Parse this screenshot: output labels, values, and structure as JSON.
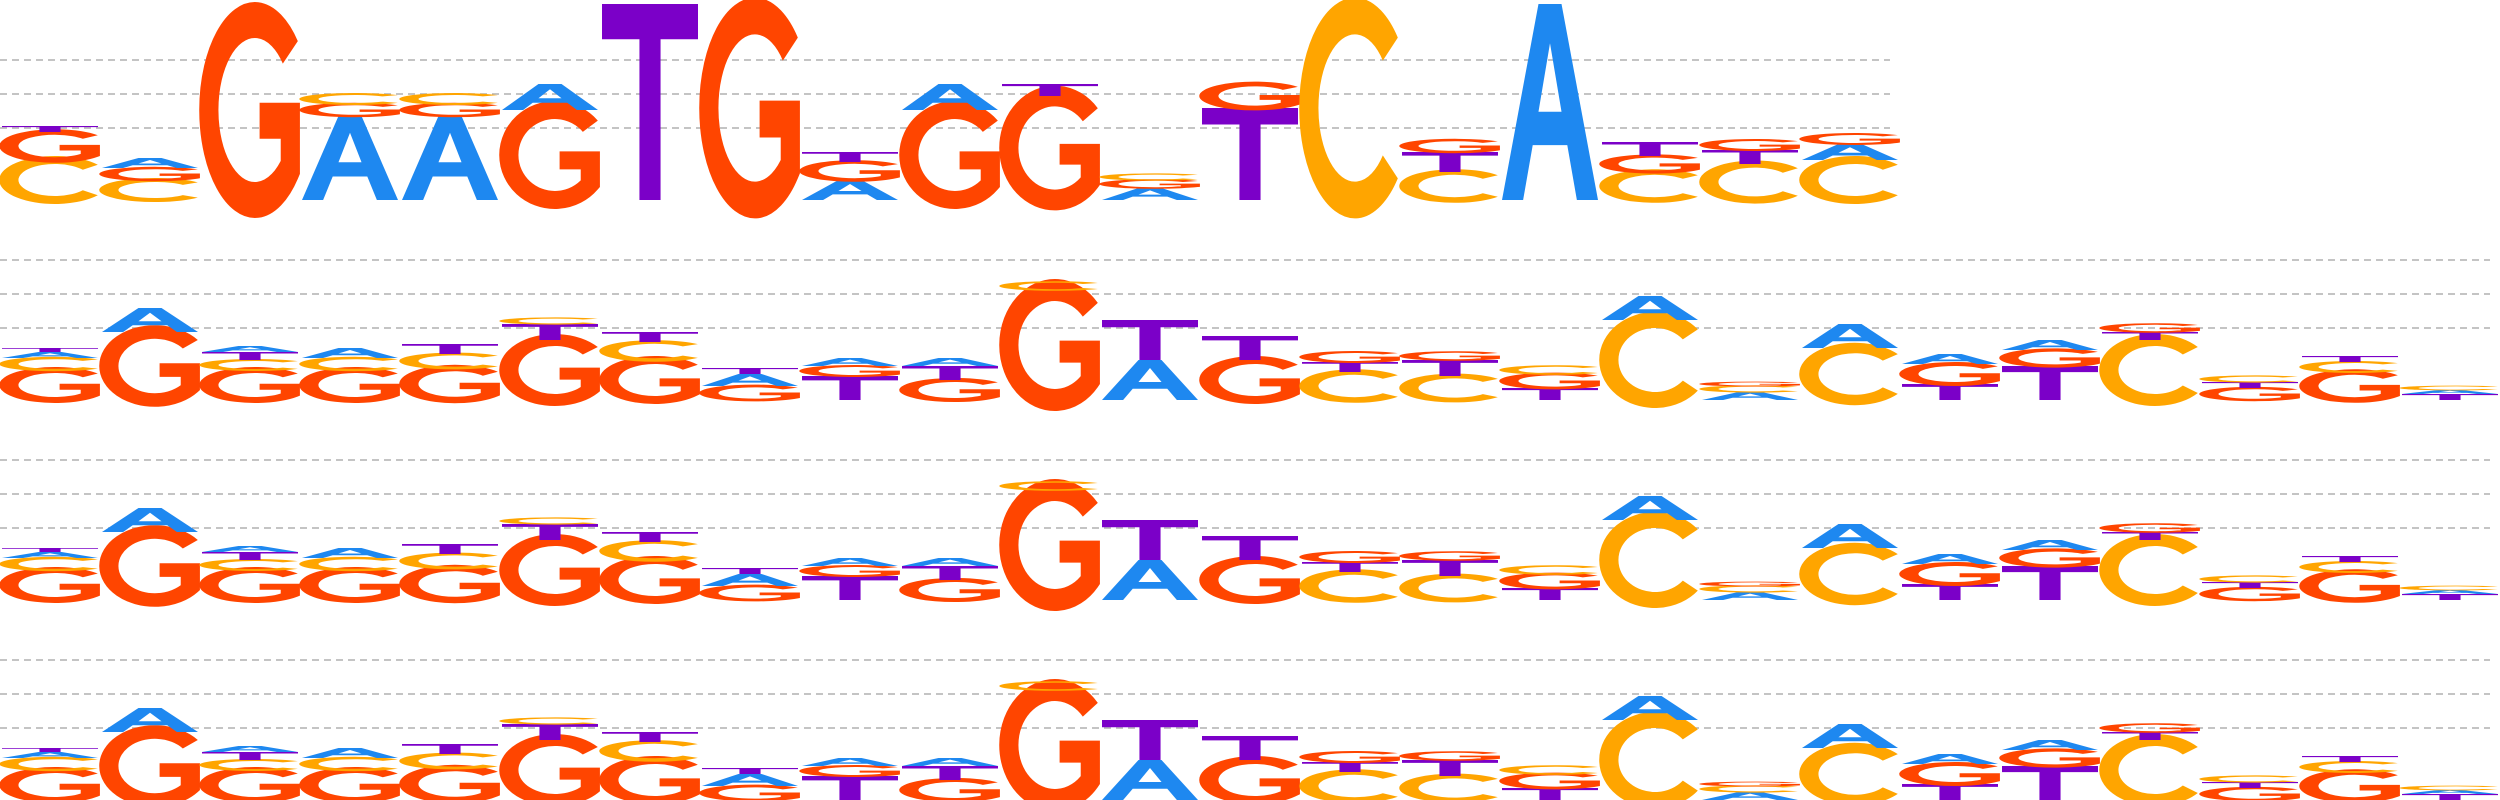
{
  "colors": {
    "A": "#1E88F0",
    "C": "#FFA500",
    "G": "#FF4500",
    "T": "#7B00C8",
    "grid": "#B0B0B0"
  },
  "logos": [
    {
      "name": "motif-logo-1",
      "columns": [
        [
          [
            "C",
            0.2
          ],
          [
            "G",
            0.14
          ],
          [
            "T",
            0.03
          ]
        ],
        [
          [
            "C",
            0.1
          ],
          [
            "G",
            0.06
          ],
          [
            "A",
            0.05
          ]
        ],
        [
          [
            "G",
            0.9
          ]
        ],
        [
          [
            "A",
            0.42
          ],
          [
            "G",
            0.06
          ],
          [
            "C",
            0.05
          ]
        ],
        [
          [
            "A",
            0.42
          ],
          [
            "G",
            0.06
          ],
          [
            "C",
            0.05
          ]
        ],
        [
          [
            "G",
            0.45
          ],
          [
            "A",
            0.13
          ]
        ],
        [
          [
            "T",
            0.98
          ]
        ],
        [
          [
            "G",
            0.92
          ]
        ],
        [
          [
            "A",
            0.1
          ],
          [
            "G",
            0.09
          ],
          [
            "T",
            0.05
          ]
        ],
        [
          [
            "G",
            0.45
          ],
          [
            "A",
            0.13
          ]
        ],
        [
          [
            "G",
            0.52
          ],
          [
            "T",
            0.06
          ]
        ],
        [
          [
            "A",
            0.06
          ],
          [
            "G",
            0.04
          ],
          [
            "C",
            0.03
          ]
        ],
        [
          [
            "T",
            0.46
          ],
          [
            "G",
            0.12
          ]
        ],
        [
          [
            "C",
            0.92
          ]
        ],
        [
          [
            "C",
            0.14
          ],
          [
            "T",
            0.1
          ],
          [
            "G",
            0.06
          ]
        ],
        [
          [
            "A",
            0.98
          ]
        ],
        [
          [
            "C",
            0.14
          ],
          [
            "G",
            0.08
          ],
          [
            "T",
            0.07
          ]
        ],
        [
          [
            "C",
            0.18
          ],
          [
            "T",
            0.07
          ],
          [
            "G",
            0.05
          ]
        ],
        [
          [
            "C",
            0.2
          ],
          [
            "A",
            0.08
          ],
          [
            "G",
            0.05
          ]
        ]
      ]
    },
    {
      "name": "motif-logo-2",
      "columns": [
        [
          [
            "G",
            0.15
          ],
          [
            "C",
            0.06
          ],
          [
            "A",
            0.03
          ],
          [
            "T",
            0.02
          ]
        ],
        [
          [
            "G",
            0.34
          ],
          [
            "A",
            0.12
          ]
        ],
        [
          [
            "G",
            0.15
          ],
          [
            "C",
            0.05
          ],
          [
            "T",
            0.04
          ],
          [
            "A",
            0.03
          ]
        ],
        [
          [
            "G",
            0.15
          ],
          [
            "C",
            0.06
          ],
          [
            "A",
            0.05
          ]
        ],
        [
          [
            "G",
            0.16
          ],
          [
            "C",
            0.07
          ],
          [
            "T",
            0.05
          ]
        ],
        [
          [
            "G",
            0.3
          ],
          [
            "T",
            0.08
          ],
          [
            "C",
            0.03
          ]
        ],
        [
          [
            "G",
            0.2
          ],
          [
            "C",
            0.09
          ],
          [
            "T",
            0.05
          ]
        ],
        [
          [
            "G",
            0.07
          ],
          [
            "A",
            0.06
          ],
          [
            "T",
            0.03
          ]
        ],
        [
          [
            "T",
            0.12
          ],
          [
            "G",
            0.05
          ],
          [
            "A",
            0.04
          ]
        ],
        [
          [
            "G",
            0.1
          ],
          [
            "T",
            0.07
          ],
          [
            "A",
            0.04
          ]
        ],
        [
          [
            "G",
            0.55
          ],
          [
            "C",
            0.04
          ]
        ],
        [
          [
            "A",
            0.2
          ],
          [
            "T",
            0.2
          ]
        ],
        [
          [
            "G",
            0.2
          ],
          [
            "T",
            0.12
          ]
        ],
        [
          [
            "C",
            0.14
          ],
          [
            "T",
            0.05
          ],
          [
            "G",
            0.05
          ]
        ],
        [
          [
            "C",
            0.12
          ],
          [
            "T",
            0.08
          ],
          [
            "G",
            0.04
          ]
        ],
        [
          [
            "T",
            0.06
          ],
          [
            "G",
            0.07
          ],
          [
            "C",
            0.04
          ]
        ],
        [
          [
            "C",
            0.4
          ],
          [
            "A",
            0.12
          ]
        ],
        [
          [
            "A",
            0.04
          ],
          [
            "C",
            0.03
          ],
          [
            "G",
            0.02
          ]
        ],
        [
          [
            "C",
            0.26
          ],
          [
            "A",
            0.12
          ]
        ],
        [
          [
            "T",
            0.08
          ],
          [
            "G",
            0.1
          ],
          [
            "A",
            0.05
          ]
        ],
        [
          [
            "T",
            0.17
          ],
          [
            "G",
            0.08
          ],
          [
            "A",
            0.05
          ]
        ],
        [
          [
            "C",
            0.3
          ],
          [
            "T",
            0.04
          ],
          [
            "G",
            0.04
          ]
        ],
        [
          [
            "G",
            0.06
          ],
          [
            "T",
            0.03
          ],
          [
            "C",
            0.03
          ]
        ],
        [
          [
            "G",
            0.14
          ],
          [
            "C",
            0.05
          ],
          [
            "T",
            0.03
          ]
        ],
        [
          [
            "T",
            0.03
          ],
          [
            "A",
            0.02
          ],
          [
            "C",
            0.02
          ]
        ]
      ]
    },
    {
      "name": "motif-logo-3",
      "columns": [
        [
          [
            "G",
            0.15
          ],
          [
            "C",
            0.06
          ],
          [
            "A",
            0.03
          ],
          [
            "T",
            0.02
          ]
        ],
        [
          [
            "G",
            0.34
          ],
          [
            "A",
            0.12
          ]
        ],
        [
          [
            "G",
            0.15
          ],
          [
            "C",
            0.05
          ],
          [
            "T",
            0.04
          ],
          [
            "A",
            0.03
          ]
        ],
        [
          [
            "G",
            0.15
          ],
          [
            "C",
            0.06
          ],
          [
            "A",
            0.05
          ]
        ],
        [
          [
            "G",
            0.16
          ],
          [
            "C",
            0.07
          ],
          [
            "T",
            0.05
          ]
        ],
        [
          [
            "G",
            0.3
          ],
          [
            "T",
            0.08
          ],
          [
            "C",
            0.03
          ]
        ],
        [
          [
            "G",
            0.2
          ],
          [
            "C",
            0.09
          ],
          [
            "T",
            0.05
          ]
        ],
        [
          [
            "G",
            0.07
          ],
          [
            "A",
            0.06
          ],
          [
            "T",
            0.03
          ]
        ],
        [
          [
            "T",
            0.12
          ],
          [
            "G",
            0.05
          ],
          [
            "A",
            0.04
          ]
        ],
        [
          [
            "G",
            0.1
          ],
          [
            "T",
            0.07
          ],
          [
            "A",
            0.04
          ]
        ],
        [
          [
            "G",
            0.55
          ],
          [
            "C",
            0.04
          ]
        ],
        [
          [
            "A",
            0.2
          ],
          [
            "T",
            0.2
          ]
        ],
        [
          [
            "G",
            0.2
          ],
          [
            "T",
            0.12
          ]
        ],
        [
          [
            "C",
            0.14
          ],
          [
            "T",
            0.05
          ],
          [
            "G",
            0.05
          ]
        ],
        [
          [
            "C",
            0.12
          ],
          [
            "T",
            0.08
          ],
          [
            "G",
            0.04
          ]
        ],
        [
          [
            "T",
            0.06
          ],
          [
            "G",
            0.07
          ],
          [
            "C",
            0.04
          ]
        ],
        [
          [
            "C",
            0.4
          ],
          [
            "A",
            0.12
          ]
        ],
        [
          [
            "A",
            0.04
          ],
          [
            "C",
            0.03
          ],
          [
            "G",
            0.02
          ]
        ],
        [
          [
            "C",
            0.26
          ],
          [
            "A",
            0.12
          ]
        ],
        [
          [
            "T",
            0.08
          ],
          [
            "G",
            0.1
          ],
          [
            "A",
            0.05
          ]
        ],
        [
          [
            "T",
            0.17
          ],
          [
            "G",
            0.08
          ],
          [
            "A",
            0.05
          ]
        ],
        [
          [
            "C",
            0.3
          ],
          [
            "T",
            0.04
          ],
          [
            "G",
            0.04
          ]
        ],
        [
          [
            "G",
            0.06
          ],
          [
            "T",
            0.03
          ],
          [
            "C",
            0.03
          ]
        ],
        [
          [
            "G",
            0.14
          ],
          [
            "C",
            0.05
          ],
          [
            "T",
            0.03
          ]
        ],
        [
          [
            "T",
            0.03
          ],
          [
            "A",
            0.02
          ],
          [
            "C",
            0.02
          ]
        ]
      ]
    },
    {
      "name": "motif-logo-4",
      "columns": [
        [
          [
            "G",
            0.15
          ],
          [
            "C",
            0.06
          ],
          [
            "A",
            0.03
          ],
          [
            "T",
            0.02
          ]
        ],
        [
          [
            "G",
            0.34
          ],
          [
            "A",
            0.12
          ]
        ],
        [
          [
            "G",
            0.15
          ],
          [
            "C",
            0.05
          ],
          [
            "T",
            0.04
          ],
          [
            "A",
            0.03
          ]
        ],
        [
          [
            "G",
            0.15
          ],
          [
            "C",
            0.06
          ],
          [
            "A",
            0.05
          ]
        ],
        [
          [
            "G",
            0.16
          ],
          [
            "C",
            0.07
          ],
          [
            "T",
            0.05
          ]
        ],
        [
          [
            "G",
            0.3
          ],
          [
            "T",
            0.08
          ],
          [
            "C",
            0.03
          ]
        ],
        [
          [
            "G",
            0.2
          ],
          [
            "C",
            0.09
          ],
          [
            "T",
            0.05
          ]
        ],
        [
          [
            "G",
            0.07
          ],
          [
            "A",
            0.06
          ],
          [
            "T",
            0.03
          ]
        ],
        [
          [
            "T",
            0.12
          ],
          [
            "G",
            0.05
          ],
          [
            "A",
            0.04
          ]
        ],
        [
          [
            "G",
            0.1
          ],
          [
            "T",
            0.07
          ],
          [
            "A",
            0.04
          ]
        ],
        [
          [
            "G",
            0.55
          ],
          [
            "C",
            0.04
          ]
        ],
        [
          [
            "A",
            0.2
          ],
          [
            "T",
            0.2
          ]
        ],
        [
          [
            "G",
            0.2
          ],
          [
            "T",
            0.12
          ]
        ],
        [
          [
            "C",
            0.14
          ],
          [
            "T",
            0.05
          ],
          [
            "G",
            0.05
          ]
        ],
        [
          [
            "C",
            0.12
          ],
          [
            "T",
            0.08
          ],
          [
            "G",
            0.04
          ]
        ],
        [
          [
            "T",
            0.06
          ],
          [
            "G",
            0.07
          ],
          [
            "C",
            0.04
          ]
        ],
        [
          [
            "C",
            0.4
          ],
          [
            "A",
            0.12
          ]
        ],
        [
          [
            "A",
            0.04
          ],
          [
            "C",
            0.03
          ],
          [
            "G",
            0.02
          ]
        ],
        [
          [
            "C",
            0.26
          ],
          [
            "A",
            0.12
          ]
        ],
        [
          [
            "T",
            0.08
          ],
          [
            "G",
            0.1
          ],
          [
            "A",
            0.05
          ]
        ],
        [
          [
            "T",
            0.17
          ],
          [
            "G",
            0.08
          ],
          [
            "A",
            0.05
          ]
        ],
        [
          [
            "C",
            0.3
          ],
          [
            "T",
            0.04
          ],
          [
            "G",
            0.04
          ]
        ],
        [
          [
            "G",
            0.06
          ],
          [
            "T",
            0.03
          ],
          [
            "C",
            0.03
          ]
        ],
        [
          [
            "G",
            0.14
          ],
          [
            "C",
            0.05
          ],
          [
            "T",
            0.03
          ]
        ],
        [
          [
            "T",
            0.03
          ],
          [
            "A",
            0.02
          ],
          [
            "C",
            0.02
          ]
        ]
      ]
    }
  ]
}
